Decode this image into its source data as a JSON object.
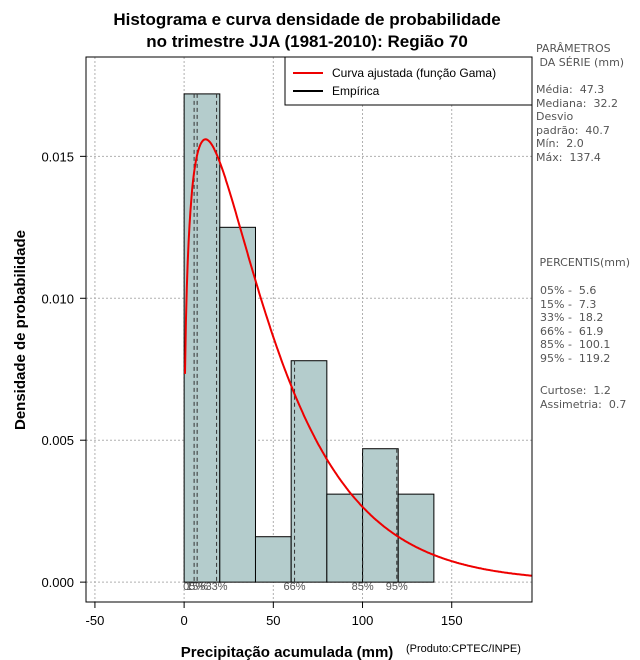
{
  "chart_data": {
    "type": "bar",
    "title_lines": [
      "Histograma e curva densidade de probabilidade",
      "no trimestre JJA (1981-2010): Região 70"
    ],
    "xlabel": "Precipitação acumulada (mm)",
    "ylabel": "Densidade de probabilidade",
    "credit": "(Produto:CPTEC/INPE)",
    "xlim": [
      -55,
      195
    ],
    "ylim": [
      -0.0007,
      0.0185
    ],
    "x_ticks": [
      -50,
      0,
      50,
      100,
      150
    ],
    "x_tick_labels": [
      "-50",
      "0",
      "50",
      "100",
      "150"
    ],
    "y_ticks": [
      0.0,
      0.005,
      0.01,
      0.015
    ],
    "y_tick_labels": [
      "0.000",
      "0.005",
      "0.010",
      "0.015"
    ],
    "bins": [
      {
        "x0": 0,
        "x1": 20,
        "density": 0.0172
      },
      {
        "x0": 20,
        "x1": 40,
        "density": 0.0125
      },
      {
        "x0": 40,
        "x1": 60,
        "density": 0.0016
      },
      {
        "x0": 60,
        "x1": 80,
        "density": 0.0078
      },
      {
        "x0": 80,
        "x1": 100,
        "density": 0.0031
      },
      {
        "x0": 100,
        "x1": 120,
        "density": 0.0047
      },
      {
        "x0": 120,
        "x1": 140,
        "density": 0.0031
      }
    ],
    "gamma_fit": {
      "mean": 47.3,
      "peak_x": 12,
      "peak_density": 0.0156
    },
    "percentile_lines": [
      {
        "label": "05%",
        "value": 5.6
      },
      {
        "label": "15%",
        "value": 7.3
      },
      {
        "label": "33%",
        "value": 18.2
      },
      {
        "label": "66%",
        "value": 61.9
      },
      {
        "label": "85%",
        "value": 100.1
      },
      {
        "label": "95%",
        "value": 119.2
      }
    ],
    "legend": [
      {
        "label": "Curva ajustada (função Gama)",
        "color": "#ee0000"
      },
      {
        "label": "Empírica",
        "color": "#000000"
      }
    ],
    "bar_fill": "#b4cccc",
    "curve_color": "#ee0000"
  },
  "side_panel": {
    "params_heading": "PARÂMETROS\n DA SÉRIE (mm)",
    "params_lines": "Média:  47.3\nMediana:  32.2\nDesvio\npadrão:  40.7\nMín:  2.0\nMáx:  137.4",
    "percentiles_heading": " PERCENTIS(mm)",
    "percentiles_lines": "05% -  5.6\n15% -  7.3\n33% -  18.2\n66% -  61.9\n85% -  100.1\n95% -  119.2",
    "stats_lines": "Curtose:  1.2\nAssimetria:  0.7"
  }
}
